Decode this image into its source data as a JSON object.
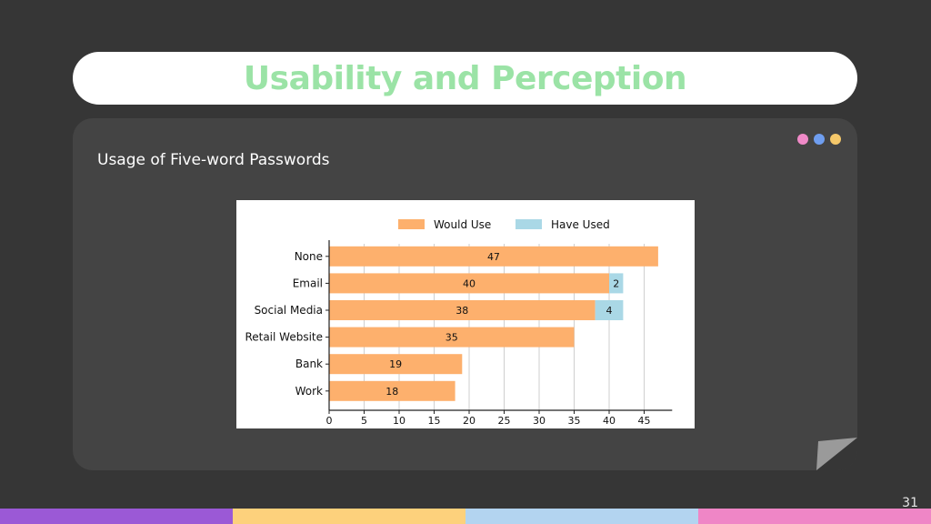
{
  "slide": {
    "title": "Usability and Perception",
    "subtitle": "Usage of Five-word Passwords",
    "page_number": "31"
  },
  "colors": {
    "title_green": "#9be3a6",
    "dot_pink": "#f08ac8",
    "dot_blue": "#6f9ef0",
    "dot_yellow": "#f5c86a",
    "would_use": "#fdb06d",
    "have_used": "#aad8e6",
    "bottom_purple": "#9b59d6",
    "bottom_yellow": "#fdd17c",
    "bottom_blue": "#b3d4f0",
    "bottom_pink": "#ef86c6"
  },
  "chart_data": {
    "type": "bar",
    "orientation": "horizontal",
    "stacked": true,
    "title": "",
    "xlabel": "",
    "ylabel": "",
    "categories": [
      "None",
      "Email",
      "Social Media",
      "Retail Website",
      "Bank",
      "Work"
    ],
    "series": [
      {
        "name": "Would Use",
        "values": [
          47,
          40,
          38,
          35,
          19,
          18
        ],
        "color": "#fdb06d"
      },
      {
        "name": "Have Used",
        "values": [
          0,
          2,
          4,
          0,
          0,
          0
        ],
        "color": "#aad8e6"
      }
    ],
    "data_labels": {
      "Would Use": [
        "47",
        "40",
        "38",
        "35",
        "19",
        "18"
      ],
      "Have Used": [
        "",
        "2",
        "4",
        "",
        "",
        ""
      ]
    },
    "xlim": [
      0,
      49
    ],
    "xticks": [
      0,
      5,
      10,
      15,
      20,
      25,
      30,
      35,
      40,
      45
    ],
    "grid": "vertical",
    "legend_position": "top"
  }
}
